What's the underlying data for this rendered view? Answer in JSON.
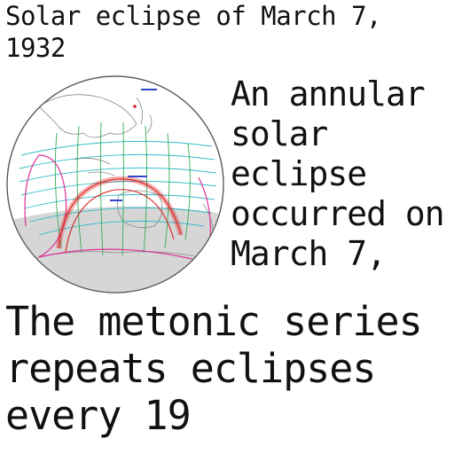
{
  "title": "Solar eclipse of March 7, 1932",
  "map": {
    "caption": "",
    "colors": {
      "globe_fill": "#ffffff",
      "night_shade": "#d6d6d6",
      "outline": "#555555",
      "coast": "#777777",
      "cyan_lines": "#33bbcc",
      "green_lines": "#33aa55",
      "magenta_lines": "#dd3399",
      "red_path": "#dd2222",
      "blue_labels": "#3344cc"
    }
  },
  "side_text": "An annular solar eclipse occurred on March 7,",
  "bottom_text": "The metonic series repeats eclipses every 19"
}
